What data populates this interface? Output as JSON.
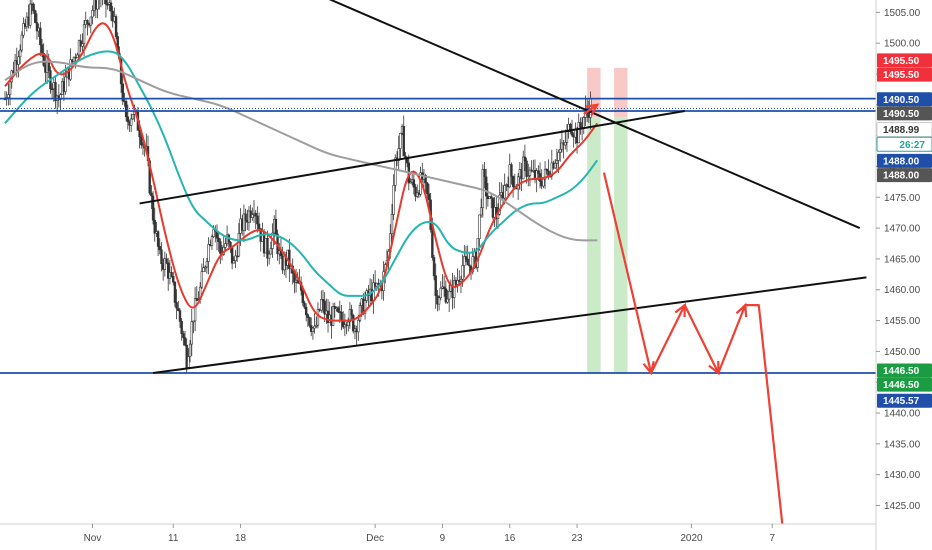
{
  "chart_data": {
    "type": "candlestick",
    "title": "",
    "xlabel": "",
    "ylabel": "",
    "ylim": [
      1422,
      1507
    ],
    "y_ticks": [
      1425,
      1430,
      1435,
      1440,
      1445,
      1450,
      1455,
      1460,
      1465,
      1470,
      1475,
      1480,
      1485,
      1490,
      1495,
      1500,
      1505
    ],
    "x_tick_labels": [
      {
        "label": "Nov",
        "bar": 13
      },
      {
        "label": "11",
        "bar": 25
      },
      {
        "label": "18",
        "bar": 35
      },
      {
        "label": "Dec",
        "bar": 55
      },
      {
        "label": "9",
        "bar": 65
      },
      {
        "label": "16",
        "bar": 75
      },
      {
        "label": "23",
        "bar": 85
      },
      {
        "label": "2020",
        "bar": 102
      },
      {
        "label": "7",
        "bar": 114
      }
    ],
    "candle_close_path": [
      [
        0,
        1491
      ],
      [
        2,
        1499
      ],
      [
        4,
        1506
      ],
      [
        6,
        1496
      ],
      [
        8,
        1491
      ],
      [
        10,
        1497
      ],
      [
        12,
        1503
      ],
      [
        14,
        1508
      ],
      [
        16,
        1505
      ],
      [
        17,
        1496
      ],
      [
        18,
        1487
      ],
      [
        19,
        1489
      ],
      [
        20,
        1486
      ],
      [
        21,
        1482
      ],
      [
        22,
        1472
      ],
      [
        23,
        1465
      ],
      [
        24,
        1464
      ],
      [
        25,
        1460
      ],
      [
        26,
        1455
      ],
      [
        27,
        1449
      ],
      [
        28,
        1456
      ],
      [
        29,
        1460
      ],
      [
        30,
        1466
      ],
      [
        31,
        1471
      ],
      [
        32,
        1466
      ],
      [
        33,
        1468
      ],
      [
        34,
        1464
      ],
      [
        35,
        1470
      ],
      [
        36,
        1472
      ],
      [
        37,
        1474
      ],
      [
        38,
        1469
      ],
      [
        39,
        1466
      ],
      [
        40,
        1470
      ],
      [
        41,
        1464
      ],
      [
        42,
        1465
      ],
      [
        43,
        1461
      ],
      [
        44,
        1460
      ],
      [
        45,
        1456
      ],
      [
        46,
        1453
      ],
      [
        47,
        1458
      ],
      [
        48,
        1455
      ],
      [
        49,
        1456
      ],
      [
        50,
        1455
      ],
      [
        51,
        1456
      ],
      [
        52,
        1454
      ],
      [
        53,
        1457
      ],
      [
        54,
        1459
      ],
      [
        55,
        1460
      ],
      [
        56,
        1461
      ],
      [
        57,
        1466
      ],
      [
        58,
        1481
      ],
      [
        59,
        1485
      ],
      [
        60,
        1478
      ],
      [
        61,
        1476
      ],
      [
        62,
        1478
      ],
      [
        63,
        1474
      ],
      [
        64,
        1459
      ],
      [
        65,
        1460
      ],
      [
        66,
        1459
      ],
      [
        67,
        1461
      ],
      [
        68,
        1464
      ],
      [
        69,
        1464
      ],
      [
        70,
        1465
      ],
      [
        71,
        1478
      ],
      [
        72,
        1474
      ],
      [
        73,
        1472
      ],
      [
        74,
        1476
      ],
      [
        75,
        1479
      ],
      [
        76,
        1477
      ],
      [
        77,
        1480
      ],
      [
        78,
        1479
      ],
      [
        79,
        1478
      ],
      [
        80,
        1478
      ],
      [
        81,
        1480
      ],
      [
        82,
        1482
      ],
      [
        83,
        1483
      ],
      [
        84,
        1487
      ],
      [
        85,
        1485
      ],
      [
        86,
        1488
      ],
      [
        87,
        1490
      ]
    ],
    "series": [
      {
        "name": "",
        "color": "#e63a2e",
        "points": [
          [
            0,
            1493
          ],
          [
            3,
            1497
          ],
          [
            6,
            1499
          ],
          [
            8,
            1494
          ],
          [
            11,
            1497
          ],
          [
            14,
            1504
          ],
          [
            16,
            1502
          ],
          [
            18,
            1493
          ],
          [
            20,
            1487
          ],
          [
            22,
            1478
          ],
          [
            24,
            1468
          ],
          [
            26,
            1460
          ],
          [
            28,
            1456
          ],
          [
            30,
            1461
          ],
          [
            32,
            1466
          ],
          [
            34,
            1467
          ],
          [
            36,
            1469
          ],
          [
            38,
            1470
          ],
          [
            40,
            1468
          ],
          [
            42,
            1465
          ],
          [
            44,
            1461
          ],
          [
            46,
            1456
          ],
          [
            48,
            1455
          ],
          [
            50,
            1455
          ],
          [
            52,
            1455
          ],
          [
            54,
            1457
          ],
          [
            56,
            1460
          ],
          [
            58,
            1470
          ],
          [
            60,
            1480
          ],
          [
            62,
            1478
          ],
          [
            64,
            1468
          ],
          [
            66,
            1460
          ],
          [
            68,
            1461
          ],
          [
            70,
            1464
          ],
          [
            72,
            1470
          ],
          [
            74,
            1474
          ],
          [
            76,
            1477
          ],
          [
            78,
            1478
          ],
          [
            80,
            1478
          ],
          [
            82,
            1479
          ],
          [
            84,
            1482
          ],
          [
            86,
            1484
          ],
          [
            88,
            1487
          ]
        ]
      },
      {
        "name": "",
        "color": "#26b5b0",
        "points": [
          [
            0,
            1487
          ],
          [
            4,
            1492
          ],
          [
            8,
            1495
          ],
          [
            12,
            1498
          ],
          [
            16,
            1499
          ],
          [
            18,
            1497
          ],
          [
            20,
            1493
          ],
          [
            22,
            1489
          ],
          [
            24,
            1484
          ],
          [
            26,
            1478
          ],
          [
            28,
            1473
          ],
          [
            30,
            1471
          ],
          [
            32,
            1469
          ],
          [
            34,
            1468
          ],
          [
            36,
            1468
          ],
          [
            38,
            1469
          ],
          [
            40,
            1469
          ],
          [
            42,
            1468
          ],
          [
            44,
            1466
          ],
          [
            46,
            1463
          ],
          [
            48,
            1461
          ],
          [
            50,
            1459
          ],
          [
            52,
            1459
          ],
          [
            54,
            1459
          ],
          [
            56,
            1461
          ],
          [
            58,
            1465
          ],
          [
            60,
            1469
          ],
          [
            62,
            1471
          ],
          [
            64,
            1471
          ],
          [
            66,
            1467
          ],
          [
            68,
            1466
          ],
          [
            70,
            1466
          ],
          [
            72,
            1469
          ],
          [
            74,
            1471
          ],
          [
            76,
            1473
          ],
          [
            78,
            1474
          ],
          [
            80,
            1474
          ],
          [
            82,
            1475
          ],
          [
            84,
            1476
          ],
          [
            86,
            1478
          ],
          [
            88,
            1481
          ]
        ]
      },
      {
        "name": "",
        "color": "#9e9e9e",
        "points": [
          [
            0,
            1494
          ],
          [
            4,
            1497
          ],
          [
            8,
            1497
          ],
          [
            12,
            1496
          ],
          [
            16,
            1496
          ],
          [
            20,
            1494
          ],
          [
            24,
            1492
          ],
          [
            28,
            1491
          ],
          [
            32,
            1490
          ],
          [
            36,
            1488
          ],
          [
            40,
            1486
          ],
          [
            44,
            1484
          ],
          [
            48,
            1482
          ],
          [
            52,
            1481
          ],
          [
            56,
            1480
          ],
          [
            60,
            1479
          ],
          [
            64,
            1478
          ],
          [
            68,
            1477
          ],
          [
            72,
            1476
          ],
          [
            76,
            1473
          ],
          [
            80,
            1470
          ],
          [
            84,
            1468
          ],
          [
            88,
            1468
          ]
        ]
      }
    ],
    "horizontal_levels": [
      {
        "value": 1491.0,
        "color": "#1f4fa8",
        "style": "solid"
      },
      {
        "value": 1489.4,
        "color": "#1f4fa8",
        "style": "dotted"
      },
      {
        "value": 1489.0,
        "color": "#1f4fa8",
        "style": "solid"
      },
      {
        "value": 1446.5,
        "color": "#1f4fa8",
        "style": "solid"
      }
    ],
    "trend_lines": [
      {
        "color": "#111111",
        "from": [
          40,
          1511
        ],
        "to": [
          127,
          1470
        ]
      },
      {
        "color": "#111111",
        "from": [
          20,
          1474
        ],
        "to": [
          101,
          1489
        ]
      },
      {
        "color": "#111111",
        "from": [
          22,
          1446.5
        ],
        "to": [
          128,
          1462
        ]
      }
    ],
    "highlight_bands": [
      {
        "color": "#f2a7a2",
        "from_bar": 86.5,
        "to_bar": 88.5,
        "y_from": 1496,
        "y_to": 1488
      },
      {
        "color": "#a7dca4",
        "from_bar": 86.5,
        "to_bar": 88.5,
        "y_from": 1488,
        "y_to": 1446.5
      },
      {
        "color": "#f2a7a2",
        "from_bar": 90.5,
        "to_bar": 92.5,
        "y_from": 1496,
        "y_to": 1488
      },
      {
        "color": "#a7dca4",
        "from_bar": 90.5,
        "to_bar": 92.5,
        "y_from": 1488,
        "y_to": 1446.5
      }
    ],
    "projection_arrow": {
      "color": "#ef4035",
      "points": [
        [
          89,
          1479
        ],
        [
          96,
          1446.5
        ],
        [
          101,
          1457.5
        ],
        [
          106,
          1446.5
        ],
        [
          110,
          1457.5
        ],
        [
          112,
          1457.5
        ],
        [
          115.5,
          1422
        ]
      ]
    },
    "small_arrow": {
      "color": "#ef4035",
      "from": [
        86,
        1488.5
      ],
      "to": [
        88,
        1490
      ]
    },
    "price_tags": [
      {
        "label": "1495.50",
        "value": 1497.2,
        "bg": "#f0303a",
        "fg": "#ffffff"
      },
      {
        "label": "1495.50",
        "value": 1494.9,
        "bg": "#f0303a",
        "fg": "#ffffff"
      },
      {
        "label": "1490.50",
        "value": 1490.9,
        "bg": "#1f4fa8",
        "fg": "#ffffff"
      },
      {
        "label": "1490.50",
        "value": 1488.6,
        "bg": "#555555",
        "fg": "#ffffff"
      },
      {
        "label": "1488.99",
        "value": 1486.0,
        "bg": "#ffffff",
        "fg": "#333333",
        "border": "#cccccc"
      },
      {
        "label": "26:27",
        "value": 1483.6,
        "bg": "#ffffff",
        "fg": "#26a69a",
        "border": "#26a69a"
      },
      {
        "label": "1488.00",
        "value": 1480.9,
        "bg": "#1f4fa8",
        "fg": "#ffffff"
      },
      {
        "label": "1488.00",
        "value": 1478.6,
        "bg": "#555555",
        "fg": "#ffffff"
      },
      {
        "label": "1446.50",
        "value": 1446.9,
        "bg": "#1b9c42",
        "fg": "#ffffff"
      },
      {
        "label": "1446.50",
        "value": 1444.6,
        "bg": "#1b9c42",
        "fg": "#ffffff"
      },
      {
        "label": "1445.57",
        "value": 1442.0,
        "bg": "#1f4fa8",
        "fg": "#ffffff"
      }
    ],
    "colors": {
      "up": "#26a69a",
      "down": "#ef5350",
      "candle_body": "#333333",
      "axis_text": "#4a4a4a"
    }
  }
}
